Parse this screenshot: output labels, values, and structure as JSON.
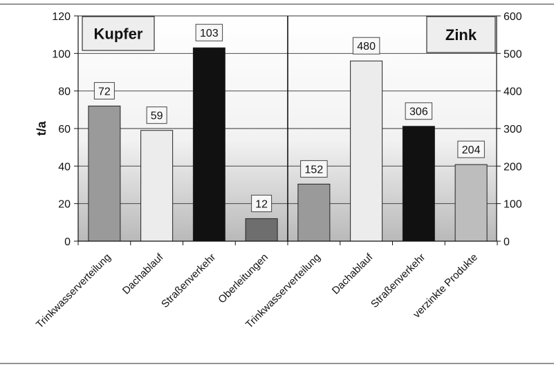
{
  "chart_data": {
    "type": "bar",
    "ylabel": "t/a",
    "panels": [
      {
        "title": "Kupfer",
        "axis": "left",
        "ylim": [
          0,
          120
        ],
        "ticks": [
          "0",
          "20",
          "40",
          "60",
          "80",
          "100",
          "120"
        ],
        "categories": [
          "Trinkwasserverteilung",
          "Dachablauf",
          "Straßenverkehr",
          "Oberleitungen"
        ],
        "values": [
          72,
          59,
          103,
          12
        ],
        "labels": [
          "72",
          "59",
          "103",
          "12"
        ],
        "colors": [
          "#9a9a9a",
          "#ececec",
          "#111111",
          "#6e6e6e"
        ]
      },
      {
        "title": "Zink",
        "axis": "right",
        "ylim": [
          0,
          600
        ],
        "ticks": [
          "0",
          "100",
          "200",
          "300",
          "400",
          "500",
          "600"
        ],
        "categories": [
          "Trinkwasserverteilung",
          "Dachablauf",
          "Straßenverkehr",
          "verzinkte Produkte"
        ],
        "values": [
          152,
          480,
          306,
          204
        ],
        "labels": [
          "152",
          "480",
          "306",
          "204"
        ],
        "colors": [
          "#9a9a9a",
          "#ececec",
          "#111111",
          "#bdbdbd"
        ]
      }
    ],
    "grid": true,
    "legend": "none"
  }
}
